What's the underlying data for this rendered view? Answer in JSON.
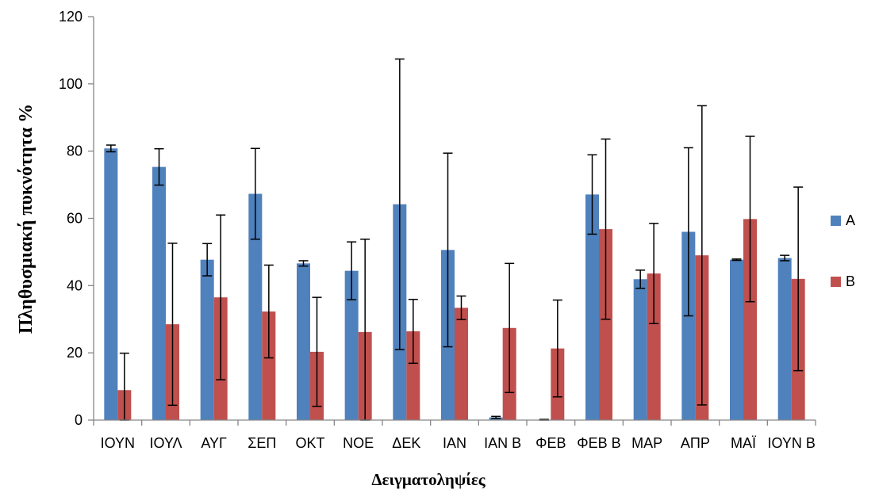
{
  "chart_data": {
    "type": "bar",
    "title": "",
    "xlabel": "Δειγματοληψίες",
    "ylabel": "Πληθυσμιακή πυκνότητα %",
    "ylim": [
      0,
      120
    ],
    "yticks": [
      0,
      20,
      40,
      60,
      80,
      100,
      120
    ],
    "grid": false,
    "legend_position": "right",
    "categories": [
      "ΙΟΥΝ",
      "ΙΟΥΛ",
      "ΑΥΓ",
      "ΣΕΠ",
      "ΟΚΤ",
      "ΝΟΕ",
      "ΔΕΚ",
      "ΙΑΝ",
      "ΙΑΝ Β",
      "ΦΕΒ",
      "ΦΕΒ Β",
      "ΜΑΡ",
      "ΑΠΡ",
      "ΜΑΪ",
      "ΙΟΥΝ Β"
    ],
    "series": [
      {
        "name": "A",
        "color": "#4F81BD",
        "values": [
          80.8,
          75.3,
          47.7,
          67.3,
          46.6,
          44.4,
          64.2,
          50.6,
          0.8,
          0.1,
          67.1,
          41.9,
          56.0,
          47.7,
          48.2
        ],
        "error": [
          1.0,
          5.4,
          4.8,
          13.5,
          0.8,
          8.6,
          43.2,
          28.8,
          0.3,
          0.1,
          11.8,
          2.7,
          25.0,
          0.2,
          0.8
        ]
      },
      {
        "name": "B",
        "color": "#C0504D",
        "values": [
          8.9,
          28.5,
          36.5,
          32.3,
          20.3,
          26.2,
          26.4,
          33.4,
          27.4,
          21.3,
          56.8,
          43.6,
          49.0,
          59.8,
          42.0
        ],
        "error": [
          11.0,
          24.1,
          24.5,
          13.8,
          16.2,
          27.6,
          9.5,
          3.5,
          19.2,
          14.4,
          26.8,
          14.9,
          44.5,
          24.6,
          27.3
        ]
      }
    ]
  }
}
